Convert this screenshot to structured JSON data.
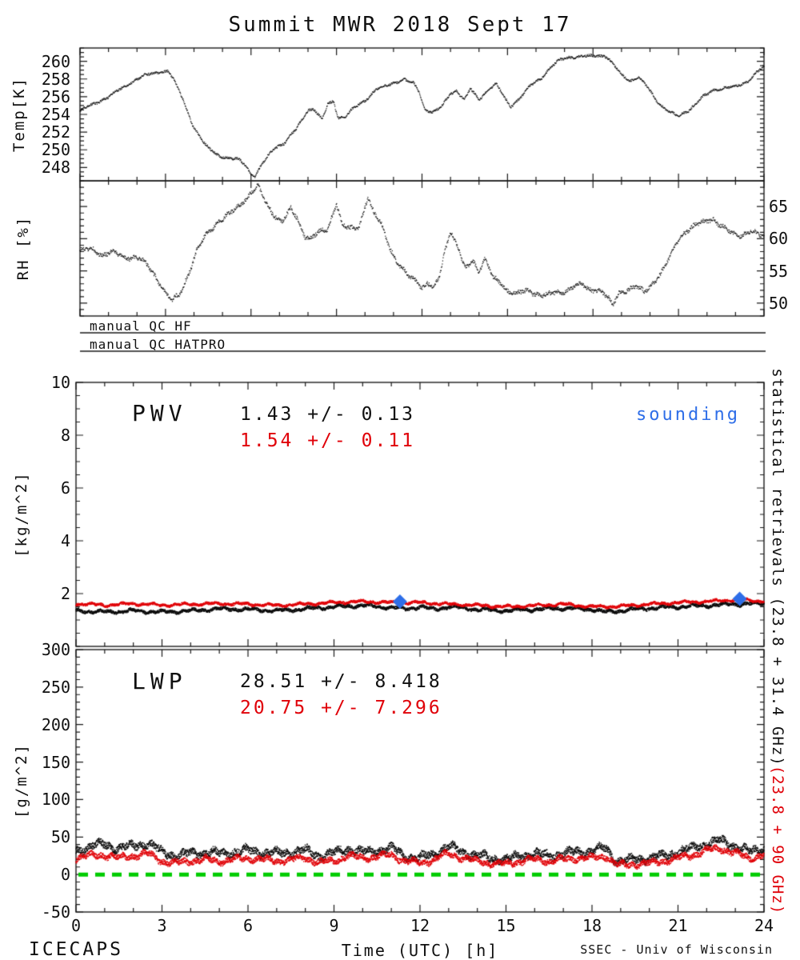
{
  "title": "Summit MWR 2018 Sept 17",
  "xaxis": {
    "label": "Time (UTC) [h]",
    "min": 0,
    "max": 24,
    "ticks": [
      0,
      3,
      6,
      9,
      12,
      15,
      18,
      21,
      24
    ]
  },
  "qc": {
    "hf": "manual QC HF",
    "hatpro": "manual QC HATPRO"
  },
  "right_labels": {
    "black": "statistical retrievals (23.8 + 31.4 GHz)",
    "red": "(23.8 + 90 GHz)"
  },
  "footer": {
    "left": "ICECAPS",
    "right": "SSEC - Univ of Wisconsin"
  },
  "colors": {
    "frame": "#1a1a1a",
    "black": "#0a0a0a",
    "red": "#e00008",
    "blue": "#2e6ee8",
    "green": "#00cc00"
  },
  "chart_data": [
    {
      "id": "temperature",
      "type": "scatter",
      "ylabel": "Temp[K]",
      "ylim": [
        246.5,
        261.5
      ],
      "yticks": [
        248,
        250,
        252,
        254,
        256,
        258,
        260
      ],
      "series": [
        {
          "name": "surface temperature",
          "color": "black",
          "spread": 0.12,
          "x": [
            0,
            0.5,
            1,
            1.5,
            2,
            2.4,
            2.8,
            3.1,
            3.3,
            3.6,
            4,
            4.4,
            4.8,
            5.2,
            5.6,
            5.8,
            6.0,
            6.15,
            6.4,
            6.8,
            7.2,
            7.6,
            8.0,
            8.2,
            8.5,
            8.7,
            8.9,
            9.05,
            9.3,
            9.6,
            10,
            10.4,
            10.8,
            11.1,
            11.4,
            11.7,
            11.9,
            12.1,
            12.4,
            12.7,
            13,
            13.2,
            13.5,
            13.7,
            14,
            14.3,
            14.6,
            14.9,
            15.1,
            15.4,
            15.8,
            16.2,
            16.5,
            16.8,
            17.2,
            17.6,
            18,
            18.4,
            18.7,
            19,
            19.3,
            19.6,
            19.9,
            20.3,
            20.7,
            21,
            21.4,
            21.8,
            22.2,
            22.6,
            23,
            23.4,
            23.7,
            24
          ],
          "y": [
            254.4,
            255.2,
            256,
            257,
            258,
            258.5,
            258.8,
            258.9,
            257.8,
            255.8,
            252.5,
            250.5,
            249.5,
            249,
            248.9,
            248.3,
            247.3,
            247.0,
            248.4,
            250.2,
            250.8,
            252.4,
            254.5,
            254.6,
            253.4,
            255.2,
            255.5,
            253.7,
            253.6,
            254.7,
            255.6,
            256.8,
            257.3,
            257.7,
            257.9,
            257.5,
            256.6,
            254.6,
            254.2,
            254.9,
            256.4,
            256.7,
            255.6,
            256.9,
            255.7,
            256.7,
            257.4,
            255.9,
            254.9,
            255.7,
            257.2,
            258.2,
            259.2,
            260.1,
            260.5,
            260.5,
            260.6,
            260.7,
            259.7,
            258.5,
            257.8,
            258.2,
            257.1,
            255.3,
            254.2,
            253.8,
            254.6,
            255.8,
            256.7,
            257,
            257.1,
            257.7,
            258.6,
            259.4
          ]
        }
      ]
    },
    {
      "id": "relative_humidity",
      "type": "scatter",
      "ylabel": "RH [%]",
      "ylim": [
        48,
        69
      ],
      "yticks": [
        50,
        55,
        60,
        65
      ],
      "series": [
        {
          "name": "relative humidity",
          "color": "black",
          "spread": 0.3,
          "x": [
            0,
            0.4,
            0.8,
            1.2,
            1.6,
            2,
            2.3,
            2.6,
            3,
            3.2,
            3.5,
            3.8,
            4.1,
            4.4,
            4.8,
            5.2,
            5.6,
            5.9,
            6.1,
            6.25,
            6.5,
            6.8,
            7.1,
            7.4,
            7.6,
            7.9,
            8.1,
            8.4,
            8.7,
            9,
            9.2,
            9.5,
            9.8,
            10.1,
            10.3,
            10.6,
            10.9,
            11.2,
            11.5,
            11.8,
            12,
            12.2,
            12.4,
            12.6,
            12.8,
            13,
            13.3,
            13.5,
            13.8,
            14,
            14.2,
            14.5,
            14.8,
            15,
            15.3,
            15.7,
            16.1,
            16.5,
            16.9,
            17.3,
            17.6,
            17.9,
            18.2,
            18.5,
            18.7,
            18.9,
            19.2,
            19.5,
            19.8,
            20.1,
            20.4,
            20.7,
            21,
            21.3,
            21.6,
            21.9,
            22.2,
            22.5,
            22.8,
            23.1,
            23.5,
            24
          ],
          "y": [
            58,
            58.6,
            57.4,
            57.9,
            57.2,
            57,
            56.2,
            54.6,
            51.5,
            50.2,
            51.5,
            54.5,
            58,
            60.5,
            62.5,
            63.6,
            65.3,
            66.6,
            67.6,
            68,
            65.8,
            63.8,
            62.6,
            64.6,
            63.4,
            60.4,
            60,
            61,
            61.6,
            65.6,
            62,
            61.5,
            62,
            66.6,
            64,
            62,
            58.4,
            55.8,
            54.2,
            53.6,
            52.4,
            53.2,
            52,
            54,
            58,
            61.4,
            58.2,
            55.2,
            56.6,
            55,
            57,
            53.8,
            53,
            52,
            51.5,
            51.8,
            51.4,
            51.3,
            51.7,
            52.6,
            52.8,
            52,
            52.2,
            51,
            49.5,
            51.6,
            52.2,
            52.6,
            51.6,
            53.2,
            54.8,
            57,
            60,
            61.4,
            62,
            62.6,
            63.2,
            62,
            61,
            60.5,
            61.2,
            60.2
          ]
        }
      ]
    },
    {
      "id": "pwv",
      "type": "scatter",
      "ylabel": "[kg/m^2]",
      "ylim": [
        0,
        10
      ],
      "yticks": [
        2,
        4,
        6,
        8,
        10
      ],
      "annotations": {
        "label": "PWV",
        "stat_black": "1.43 +/-  0.13",
        "stat_red": "1.54 +/-  0.11",
        "sounding": "sounding"
      },
      "sounding_points": {
        "x": [
          11.3,
          23.15
        ],
        "y": [
          1.7,
          1.8
        ],
        "color": "blue"
      },
      "series": [
        {
          "name": "23.8 + 31.4 GHz",
          "color": "black",
          "spread": 0.055,
          "x": [
            0,
            1,
            2,
            3,
            4,
            5,
            6,
            7,
            8,
            9,
            10,
            10.5,
            11,
            11.5,
            12,
            12.5,
            13,
            13.5,
            14,
            15,
            16,
            17,
            18,
            18.5,
            19,
            20,
            21,
            22,
            23,
            24
          ],
          "y": [
            1.35,
            1.3,
            1.35,
            1.3,
            1.35,
            1.42,
            1.4,
            1.35,
            1.42,
            1.5,
            1.55,
            1.5,
            1.48,
            1.42,
            1.5,
            1.4,
            1.5,
            1.45,
            1.4,
            1.35,
            1.4,
            1.45,
            1.4,
            1.3,
            1.35,
            1.45,
            1.5,
            1.55,
            1.6,
            1.62
          ]
        },
        {
          "name": "23.8 + 90 GHz",
          "color": "red",
          "spread": 0.045,
          "x": [
            0,
            1,
            2,
            3,
            4,
            5,
            6,
            7,
            8,
            9,
            10,
            11,
            12,
            13,
            14,
            15,
            16,
            17,
            18,
            19,
            20,
            21,
            22,
            23,
            24
          ],
          "y": [
            1.62,
            1.56,
            1.62,
            1.56,
            1.6,
            1.62,
            1.6,
            1.55,
            1.6,
            1.66,
            1.7,
            1.66,
            1.66,
            1.6,
            1.56,
            1.5,
            1.55,
            1.6,
            1.5,
            1.52,
            1.6,
            1.66,
            1.7,
            1.76,
            1.72
          ]
        }
      ]
    },
    {
      "id": "lwp",
      "type": "scatter",
      "ylabel": "[g/m^2]",
      "ylim": [
        -50,
        300
      ],
      "yticks": [
        -50,
        0,
        50,
        100,
        150,
        200,
        250,
        300
      ],
      "annotations": {
        "label": "LWP",
        "stat_black": "28.51 +/-  8.418",
        "stat_red": "20.75 +/-  7.296"
      },
      "zero_line": {
        "y": 0,
        "color": "green",
        "style": "dashed"
      },
      "series": [
        {
          "name": "23.8 + 31.4 GHz",
          "color": "black",
          "spread": 4.5,
          "x": [
            0,
            0.5,
            1,
            1.5,
            2,
            2.5,
            3,
            3.5,
            4,
            4.5,
            5,
            5.5,
            6,
            6.5,
            7,
            7.5,
            8,
            8.5,
            9,
            9.5,
            10,
            10.5,
            11,
            11.5,
            12,
            12.5,
            13,
            13.5,
            14,
            14.5,
            15,
            15.5,
            16,
            16.5,
            17,
            17.5,
            18,
            18.5,
            18.8,
            19,
            19.5,
            20,
            20.5,
            21,
            21.5,
            22,
            22.5,
            23,
            23.5,
            24
          ],
          "y": [
            32,
            38,
            40,
            35,
            38,
            42,
            30,
            25,
            28,
            30,
            28,
            30,
            32,
            30,
            28,
            30,
            32,
            25,
            28,
            35,
            30,
            32,
            35,
            25,
            22,
            28,
            38,
            30,
            25,
            22,
            20,
            25,
            28,
            25,
            28,
            30,
            32,
            35,
            20,
            18,
            20,
            22,
            25,
            30,
            35,
            42,
            45,
            38,
            30,
            35
          ]
        },
        {
          "name": "23.8 + 90 GHz",
          "color": "red",
          "spread": 3.5,
          "x": [
            0,
            0.5,
            1,
            1.5,
            2,
            2.5,
            3,
            3.5,
            4,
            4.5,
            5,
            5.5,
            6,
            6.5,
            7,
            7.5,
            8,
            8.5,
            9,
            9.5,
            10,
            10.5,
            11,
            11.5,
            12,
            12.5,
            13,
            13.5,
            14,
            14.5,
            15,
            15.5,
            16,
            16.5,
            17,
            17.5,
            18,
            18.5,
            18.8,
            19,
            19.5,
            20,
            20.5,
            21,
            21.5,
            22,
            22.5,
            23,
            23.5,
            24
          ],
          "y": [
            22,
            25,
            26,
            22,
            25,
            28,
            18,
            15,
            18,
            20,
            18,
            20,
            22,
            20,
            18,
            20,
            22,
            16,
            18,
            25,
            22,
            24,
            26,
            18,
            15,
            20,
            28,
            22,
            18,
            15,
            14,
            18,
            20,
            18,
            20,
            22,
            22,
            25,
            14,
            12,
            14,
            15,
            18,
            22,
            26,
            32,
            35,
            28,
            22,
            26
          ]
        }
      ]
    }
  ]
}
